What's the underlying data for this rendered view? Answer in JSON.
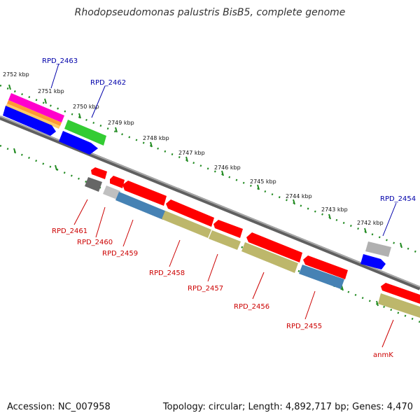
{
  "title": "Rhodopseudomonas palustris BisB5, complete genome",
  "footer": {
    "accession": "Accession: NC_007958",
    "summary": "Topology: circular; Length: 4,892,717 bp; Genes: 4,470"
  },
  "scale_labels": [
    "2752 kbp",
    "2751 kbp",
    "2750 kbp",
    "2749 kbp",
    "2748 kbp",
    "2747 kbp",
    "2746 kbp",
    "2745 kbp",
    "2744 kbp",
    "2743 kbp",
    "2742 kbp"
  ],
  "forward_gene_labels": [
    "RPD_2463",
    "RPD_2462",
    "RPD_2454"
  ],
  "reverse_gene_labels": [
    "RPD_2461",
    "RPD_2460",
    "RPD_2459",
    "RPD_2458",
    "RPD_2457",
    "RPD_2456",
    "RPD_2455",
    "anmK"
  ],
  "colors": {
    "backbone": "#808080",
    "ticks": "#228b22",
    "cds_red": "#ff0000",
    "cds_blue": "#0000ff",
    "cds_green": "#33cc33",
    "cds_gray": "#b0b0b0",
    "cds_darkgray": "#666666",
    "cds_steel": "#4682b4",
    "cds_khaki": "#bdb76b",
    "cds_magenta": "#ff00cc",
    "forward_label": "#0000aa",
    "reverse_label": "#cc0000"
  }
}
